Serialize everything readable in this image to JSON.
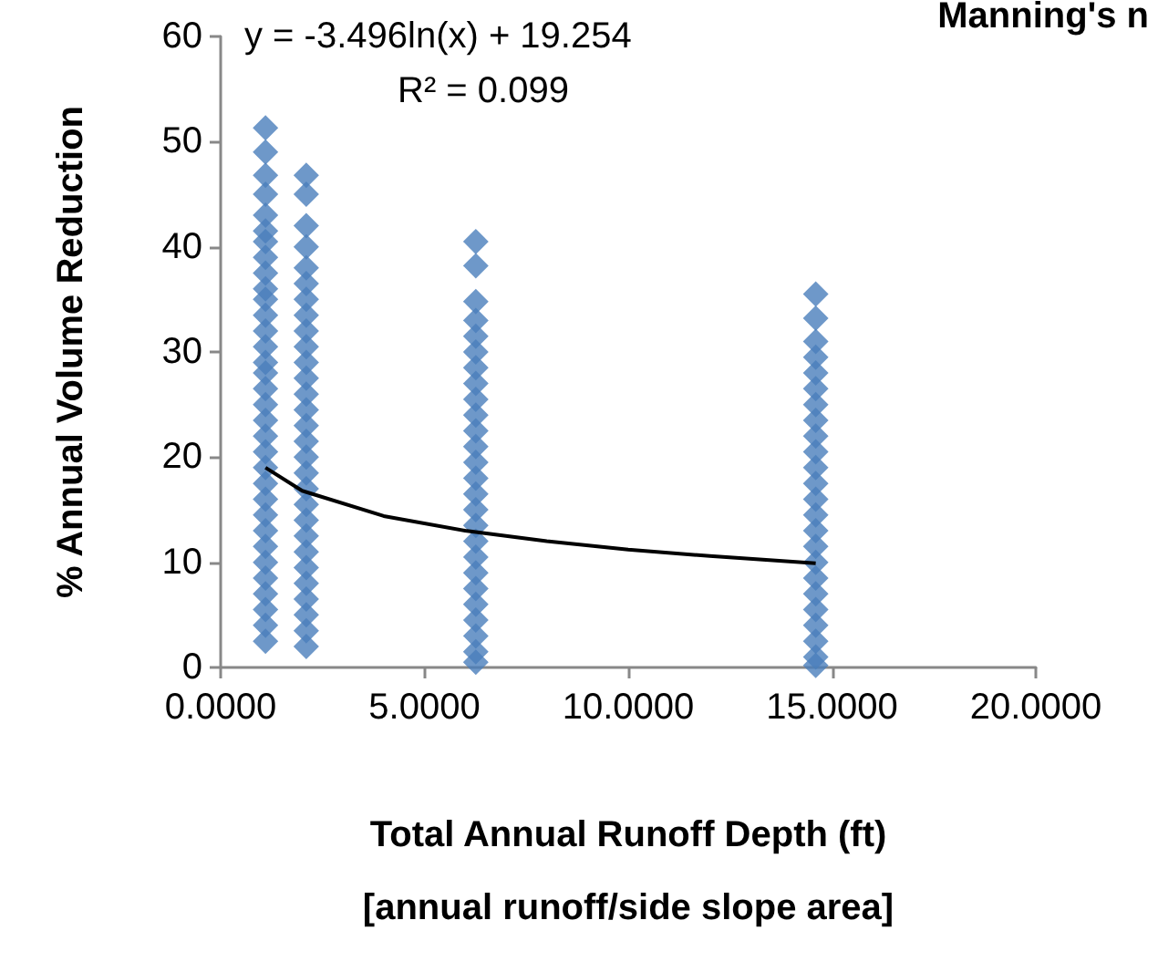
{
  "chart_data": {
    "type": "scatter",
    "title": "Manning's n",
    "xlabel": "Total Annual Runoff Depth (ft)\n[annual runoff/side slope area]",
    "ylabel": "% Annual Volume Reduction",
    "annotations": [
      "y = -3.496ln(x) + 19.254",
      "R² = 0.099"
    ],
    "xlim": [
      0,
      20
    ],
    "xticks": [
      {
        "value": 0,
        "label": "0.0000"
      },
      {
        "value": 5,
        "label": "5.0000"
      },
      {
        "value": 10,
        "label": "10.0000"
      },
      {
        "value": 15,
        "label": "15.0000"
      },
      {
        "value": 20,
        "label": "20.0000"
      }
    ],
    "ylim": [
      0,
      60
    ],
    "yticks": [
      0,
      10,
      20,
      30,
      40,
      50,
      60
    ],
    "grid": false,
    "legend": false,
    "marker": "diamond",
    "series": [
      {
        "type": "scatter",
        "color": "#4a7ebb",
        "x": [
          1.1,
          1.1,
          1.1,
          1.1,
          1.1,
          1.1,
          1.1,
          1.1,
          1.1,
          1.1,
          1.1,
          1.1,
          1.1,
          1.1,
          1.1,
          1.1,
          1.1,
          1.1,
          1.1,
          1.1,
          1.1,
          1.1,
          1.1,
          1.1,
          1.1,
          1.1,
          1.1,
          1.1,
          1.1,
          1.1,
          1.1,
          1.1,
          1.1,
          2.1,
          2.1,
          2.1,
          2.1,
          2.1,
          2.1,
          2.1,
          2.1,
          2.1,
          2.1,
          2.1,
          2.1,
          2.1,
          2.1,
          2.1,
          2.1,
          2.1,
          2.1,
          2.1,
          2.1,
          2.1,
          2.1,
          2.1,
          2.1,
          2.1,
          2.1,
          2.1,
          2.1,
          2.1,
          6.26,
          6.26,
          6.26,
          6.26,
          6.26,
          6.26,
          6.26,
          6.26,
          6.26,
          6.26,
          6.26,
          6.26,
          6.26,
          6.26,
          6.26,
          6.26,
          6.26,
          6.26,
          6.26,
          6.26,
          6.26,
          6.26,
          6.26,
          6.26,
          6.26,
          6.26,
          14.6,
          14.6,
          14.6,
          14.6,
          14.6,
          14.6,
          14.6,
          14.6,
          14.6,
          14.6,
          14.6,
          14.6,
          14.6,
          14.6,
          14.6,
          14.6,
          14.6,
          14.6,
          14.6,
          14.6,
          14.6,
          14.6,
          14.6,
          14.6
        ],
        "values": [
          51.3,
          49.0,
          46.8,
          45.0,
          43.0,
          41.5,
          40.5,
          39,
          37.5,
          36,
          35,
          33.5,
          32,
          30.5,
          29,
          28,
          26.5,
          25,
          23.5,
          22,
          20.5,
          19,
          17.5,
          16,
          14.5,
          13,
          11.5,
          10,
          8.5,
          7,
          5.5,
          4,
          2.5,
          46.8,
          45,
          42,
          40,
          38,
          36.5,
          35,
          33.5,
          32,
          30.5,
          29,
          27.5,
          26,
          24.5,
          23,
          21.5,
          20,
          18.5,
          17,
          15.5,
          14,
          12.5,
          11,
          9.5,
          8,
          6.5,
          5,
          3.5,
          2,
          40.5,
          38.2,
          34.8,
          33,
          31.5,
          30,
          28.5,
          27,
          25.5,
          24,
          22.5,
          21,
          19.5,
          18,
          16.5,
          15,
          13.5,
          12,
          10.5,
          9,
          7.5,
          6,
          4.5,
          3,
          1.5,
          0.5,
          35.5,
          33.2,
          31,
          29.5,
          28,
          26.5,
          25,
          23.5,
          22,
          20.5,
          19,
          17.5,
          16,
          14.5,
          13,
          11.5,
          10,
          8.5,
          7,
          5.5,
          4,
          2.5,
          1,
          0.2
        ]
      },
      {
        "type": "line",
        "color": "#000000",
        "marker": "none",
        "line_style": "solid",
        "x": [
          1.1,
          2,
          4,
          6,
          8,
          10,
          12,
          14.6
        ],
        "values": [
          19.0,
          16.8,
          14.4,
          13.0,
          12.0,
          11.2,
          10.6,
          9.9
        ]
      }
    ]
  }
}
